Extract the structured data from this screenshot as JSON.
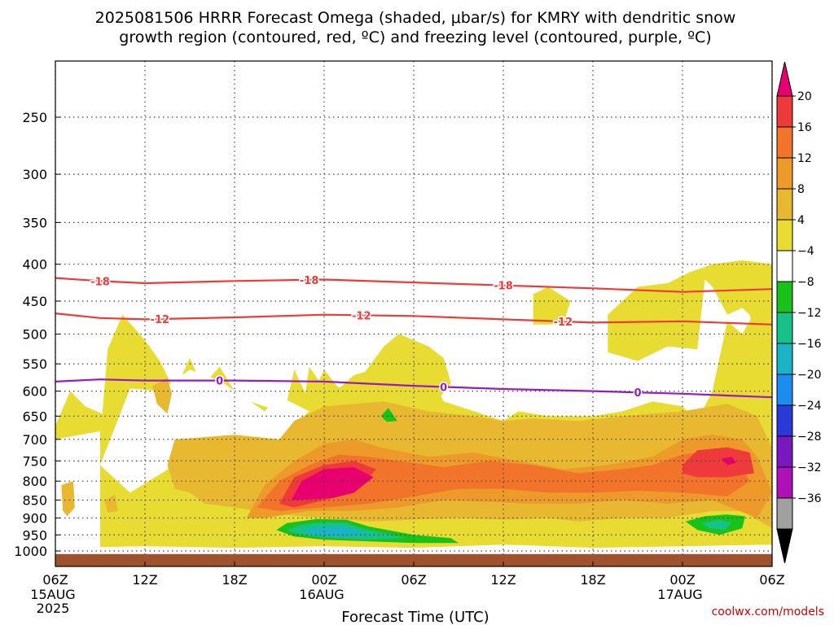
{
  "chart_data": {
    "type": "heatmap",
    "title_lines": [
      "2025081506 HRRR Forecast Omega (shaded, μbar/s) for KMRY with dendritic snow",
      "growth region (contoured, red, ºC) and freezing level (contoured, purple, ºC)"
    ],
    "xlabel": "Forecast Time (UTC)",
    "ylabel": "",
    "x_ticks": [
      {
        "hour": 0,
        "label": "06Z",
        "sub": [
          "15AUG",
          "2025"
        ]
      },
      {
        "hour": 6,
        "label": "12Z",
        "sub": []
      },
      {
        "hour": 12,
        "label": "18Z",
        "sub": []
      },
      {
        "hour": 18,
        "label": "00Z",
        "sub": [
          "16AUG"
        ]
      },
      {
        "hour": 24,
        "label": "06Z",
        "sub": []
      },
      {
        "hour": 30,
        "label": "12Z",
        "sub": []
      },
      {
        "hour": 36,
        "label": "18Z",
        "sub": []
      },
      {
        "hour": 42,
        "label": "00Z",
        "sub": [
          "17AUG"
        ]
      },
      {
        "hour": 48,
        "label": "06Z",
        "sub": []
      }
    ],
    "xlim_hours": [
      0,
      48
    ],
    "y_ticks": [
      250,
      300,
      350,
      400,
      450,
      500,
      550,
      600,
      650,
      700,
      750,
      800,
      850,
      900,
      950,
      1000
    ],
    "ylim_hPa": [
      200,
      1025
    ],
    "y_scale": "log",
    "grid": true,
    "colorbar": {
      "levels": [
        20,
        16,
        12,
        8,
        4,
        -4,
        -8,
        -12,
        -16,
        -20,
        -24,
        -28,
        -32,
        -36
      ],
      "colors": [
        "#e8006f",
        "#ee3a3a",
        "#f2732a",
        "#ee9a2a",
        "#e8b830",
        "#e8dc32",
        "#ffffff",
        "#19c219",
        "#16c28a",
        "#1ab4c8",
        "#1a8ef0",
        "#2a3ad8",
        "#7a18c0",
        "#b010b8",
        "#a0a0a0",
        "#000000"
      ]
    },
    "contours": [
      {
        "color": "#ee3a3a",
        "label": "-18",
        "points": [
          [
            0,
            418
          ],
          [
            3,
            422
          ],
          [
            6,
            425
          ],
          [
            12,
            422
          ],
          [
            18,
            420
          ],
          [
            24,
            424
          ],
          [
            30,
            428
          ],
          [
            36,
            432
          ],
          [
            42,
            437
          ],
          [
            48,
            433
          ]
        ],
        "label_hours": [
          3,
          17,
          30
        ]
      },
      {
        "color": "#ee3a3a",
        "label": "-12",
        "points": [
          [
            0,
            468
          ],
          [
            3,
            475
          ],
          [
            6,
            477
          ],
          [
            12,
            474
          ],
          [
            18,
            470
          ],
          [
            24,
            472
          ],
          [
            30,
            477
          ],
          [
            36,
            482
          ],
          [
            42,
            480
          ],
          [
            48,
            485
          ]
        ],
        "label_hours": [
          7,
          20.5,
          34
        ]
      },
      {
        "color": "#9a1ac0",
        "label": "0",
        "points": [
          [
            0,
            582
          ],
          [
            3,
            578
          ],
          [
            6,
            580
          ],
          [
            12,
            580
          ],
          [
            18,
            582
          ],
          [
            24,
            590
          ],
          [
            30,
            596
          ],
          [
            36,
            600
          ],
          [
            42,
            605
          ],
          [
            48,
            612
          ]
        ],
        "label_hours": [
          11,
          26,
          39
        ]
      }
    ],
    "ground": {
      "color": "#a0522d",
      "top_hPa": 1010
    }
  },
  "credit": "coolwx.com/models"
}
